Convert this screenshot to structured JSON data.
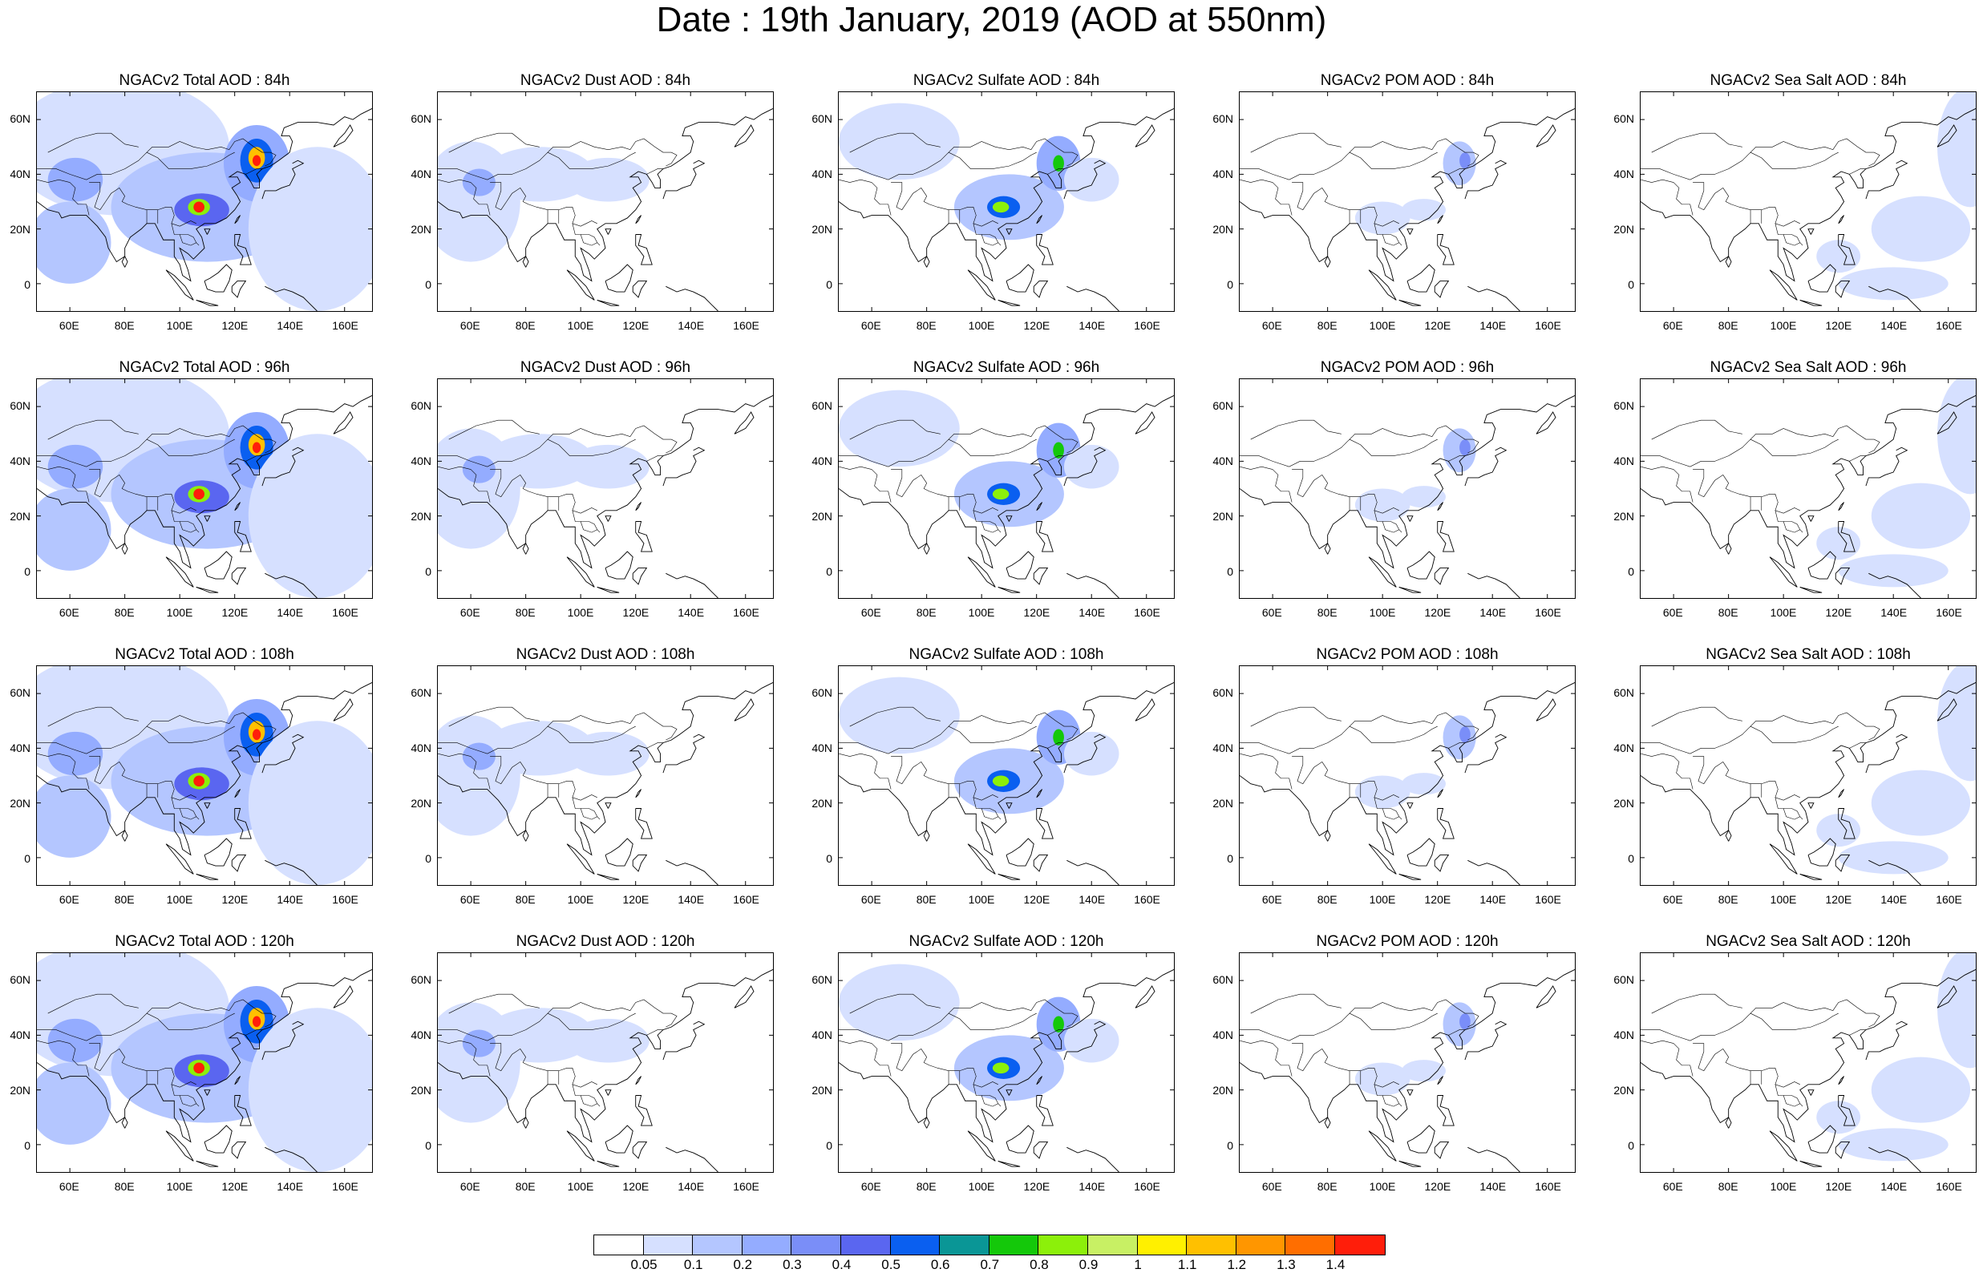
{
  "title": "Date : 19th January, 2019 (AOD at 550nm)",
  "lat_labels": [
    "60N",
    "40N",
    "20N",
    "0"
  ],
  "lon_labels": [
    "60E",
    "80E",
    "100E",
    "120E",
    "140E",
    "160E"
  ],
  "panels": [
    {
      "title": "NGACv2 Total AOD : 84h",
      "species": "total",
      "lead": "84h"
    },
    {
      "title": "NGACv2 Dust AOD : 84h",
      "species": "dust",
      "lead": "84h"
    },
    {
      "title": "NGACv2 Sulfate AOD : 84h",
      "species": "sulfate",
      "lead": "84h"
    },
    {
      "title": "NGACv2 POM AOD : 84h",
      "species": "pom",
      "lead": "84h"
    },
    {
      "title": "NGACv2 Sea Salt AOD : 84h",
      "species": "seasalt",
      "lead": "84h"
    },
    {
      "title": "NGACv2 Total AOD : 96h",
      "species": "total",
      "lead": "96h"
    },
    {
      "title": "NGACv2 Dust AOD : 96h",
      "species": "dust",
      "lead": "96h"
    },
    {
      "title": "NGACv2 Sulfate AOD : 96h",
      "species": "sulfate",
      "lead": "96h"
    },
    {
      "title": "NGACv2 POM AOD : 96h",
      "species": "pom",
      "lead": "96h"
    },
    {
      "title": "NGACv2 Sea Salt AOD : 96h",
      "species": "seasalt",
      "lead": "96h"
    },
    {
      "title": "NGACv2 Total AOD : 108h",
      "species": "total",
      "lead": "108h"
    },
    {
      "title": "NGACv2 Dust AOD : 108h",
      "species": "dust",
      "lead": "108h"
    },
    {
      "title": "NGACv2 Sulfate AOD : 108h",
      "species": "sulfate",
      "lead": "108h"
    },
    {
      "title": "NGACv2 POM AOD : 108h",
      "species": "pom",
      "lead": "108h"
    },
    {
      "title": "NGACv2 Sea Salt AOD : 108h",
      "species": "seasalt",
      "lead": "108h"
    },
    {
      "title": "NGACv2 Total AOD : 120h",
      "species": "total",
      "lead": "120h"
    },
    {
      "title": "NGACv2 Dust AOD : 120h",
      "species": "dust",
      "lead": "120h"
    },
    {
      "title": "NGACv2 Sulfate AOD : 120h",
      "species": "sulfate",
      "lead": "120h"
    },
    {
      "title": "NGACv2 POM AOD : 120h",
      "species": "pom",
      "lead": "120h"
    },
    {
      "title": "NGACv2 Sea Salt  AOD : 120h",
      "species": "seasalt",
      "lead": "120h"
    }
  ],
  "colorbar": {
    "colors": [
      "#ffffff",
      "#d6e0ff",
      "#b4c6ff",
      "#94acff",
      "#7a8ef8",
      "#5a66f0",
      "#0a5ff0",
      "#0a9696",
      "#14c80a",
      "#8cf00a",
      "#c8f064",
      "#fff000",
      "#ffc000",
      "#ff9600",
      "#ff6e00",
      "#ff1e0a"
    ],
    "labels": [
      "0.05",
      "0.1",
      "0.2",
      "0.3",
      "0.4",
      "0.5",
      "0.6",
      "0.7",
      "0.8",
      "0.9",
      "1",
      "1.1",
      "1.2",
      "1.3",
      "1.4"
    ]
  }
}
